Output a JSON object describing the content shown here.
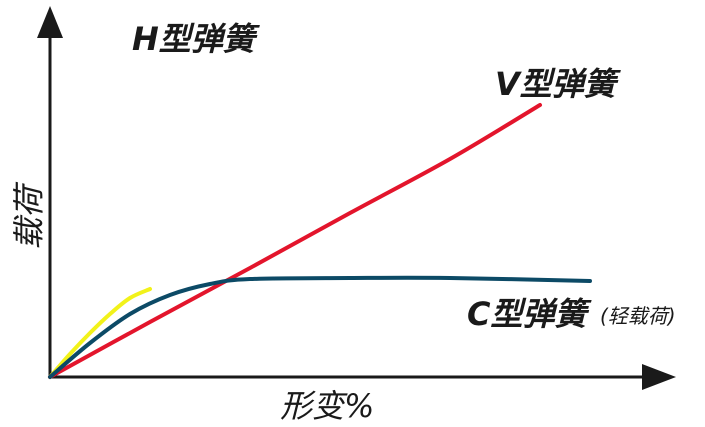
{
  "chart_data": {
    "type": "line",
    "xlabel": "形变%",
    "ylabel": "载荷",
    "series": [
      {
        "name": "H型弹簧",
        "color": "#f2f21a",
        "x": [
          0,
          20,
          40,
          60,
          80,
          100
        ],
        "y": [
          0,
          23,
          44,
          63,
          79,
          88
        ]
      },
      {
        "name": "V型弹簧",
        "color": "#e3152c",
        "x": [
          0,
          100,
          200,
          300,
          400,
          490
        ],
        "y": [
          0,
          55,
          109,
          164,
          218,
          272
        ]
      },
      {
        "name": "C型弹簧",
        "note": "(轻载荷)",
        "color": "#0c4a66",
        "x": [
          0,
          40,
          80,
          120,
          160,
          200,
          300,
          400,
          540
        ],
        "y": [
          0,
          34,
          63,
          82,
          93,
          98,
          99,
          99,
          96
        ]
      }
    ]
  }
}
